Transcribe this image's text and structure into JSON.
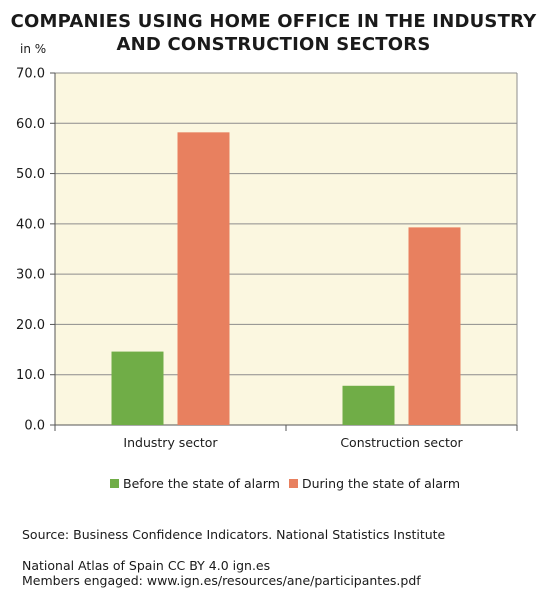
{
  "title_line1": "COMPANIES USING HOME OFFICE IN THE INDUSTRY",
  "title_line2": "AND CONSTRUCTION SECTORS",
  "unit_label": "in %",
  "source": "Source: Business Confidence Indicators. National Statistics Institute",
  "credit_line1": "National Atlas of Spain CC BY 4.0 ign.es",
  "credit_line2": "Members engaged: www.ign.es/resources/ane/participantes.pdf",
  "chart_data": {
    "type": "bar",
    "title": "COMPANIES USING HOME OFFICE IN THE INDUSTRY AND CONSTRUCTION SECTORS",
    "ylabel": "in %",
    "categories": [
      "Industry sector",
      "Construction sector"
    ],
    "series": [
      {
        "name": "Before the state of alarm",
        "values": [
          14.6,
          7.8
        ],
        "color": "#70ad47"
      },
      {
        "name": "During the state of alarm",
        "values": [
          58.2,
          39.3
        ],
        "color": "#e8805f"
      }
    ],
    "ylim": [
      0,
      70
    ],
    "yticks": [
      "0.0",
      "10.0",
      "20.0",
      "30.0",
      "40.0",
      "50.0",
      "60.0",
      "70.0"
    ],
    "plot_background": "#fbf7e0",
    "grid": true,
    "legend_position": "bottom"
  }
}
